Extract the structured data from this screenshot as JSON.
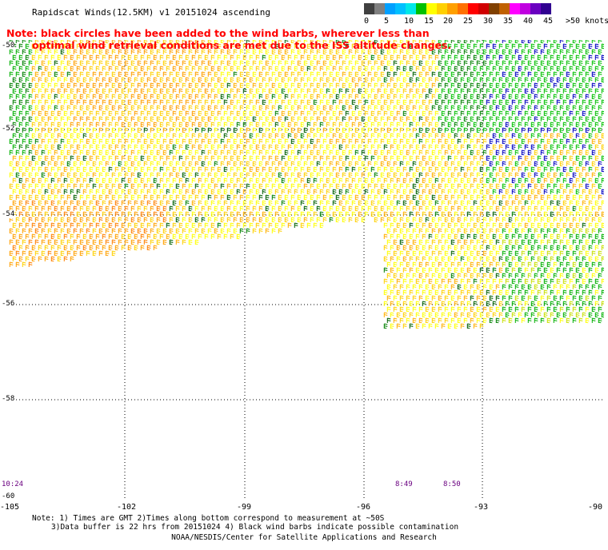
{
  "title": "Rapidscat Winds(12.5KM) v1 20151024 ascending",
  "note_line1": "Note: black circles have been added to the wind barbs, wherever less than",
  "note_line2": "optimal wind retrieval conditions are met due to the ISS altitude changes.",
  "colorbar": {
    "colors": [
      "#404040",
      "#808080",
      "#00a0ff",
      "#00c0ff",
      "#00e8e8",
      "#00c000",
      "#ffff00",
      "#ffd000",
      "#ffa000",
      "#ff7000",
      "#ff0000",
      "#d00000",
      "#804000",
      "#c06000",
      "#ff00ff",
      "#c000e0",
      "#6a00c0",
      "#300090"
    ],
    "labels": [
      "0",
      "5",
      "10",
      "15",
      "20",
      "25",
      "30",
      "35",
      "40",
      "45",
      ">50 knots"
    ]
  },
  "x_ticks": [
    "-105",
    "-102",
    "-99",
    "-96",
    "-93",
    "-90"
  ],
  "y_ticks": [
    "-50",
    "-52",
    "-54",
    "-56",
    "-58",
    "-60"
  ],
  "times": [
    "10:24",
    "8:49",
    "8:50"
  ],
  "footnote_line1": "Note: 1) Times are GMT 2)Times along bottom correspond to measurement at ~50S",
  "footnote_line2": "3)Data buffer is 22 hrs from 20151024 4) Black wind barbs indicate possible contamination",
  "credit": "NOAA/NESDIS/Center for Satellite Applications and Research",
  "map": {
    "lon_range": [
      -105,
      -90
    ],
    "lat_range": [
      -60,
      -49.5
    ],
    "grid": true
  }
}
